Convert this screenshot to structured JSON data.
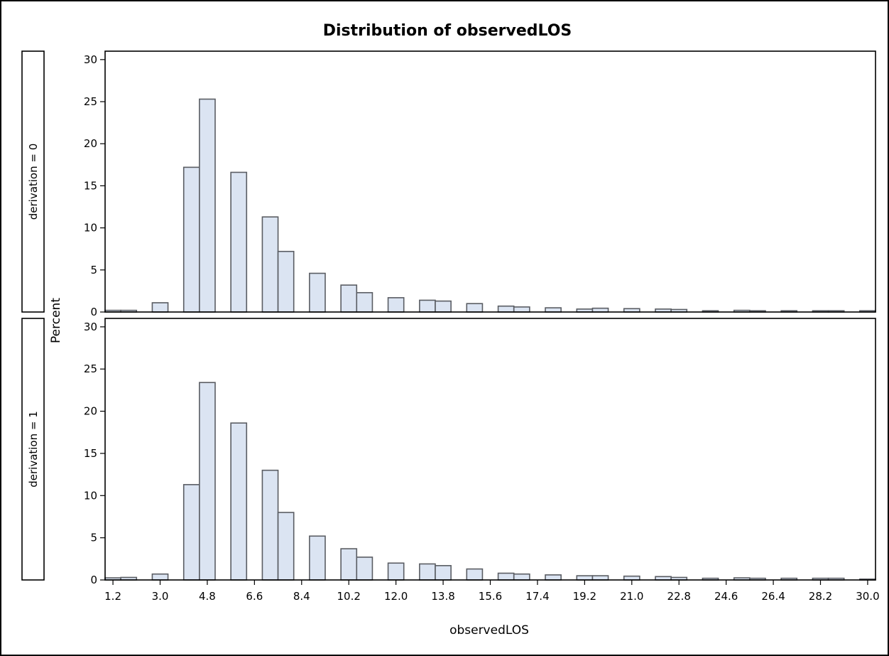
{
  "chart_data": {
    "type": "bar",
    "title": "Distribution of observedLOS",
    "xlabel": "observedLOS",
    "ylabel": "Percent",
    "x_ticks": [
      "1.2",
      "3.0",
      "4.8",
      "6.6",
      "8.4",
      "10.2",
      "12.0",
      "13.8",
      "15.6",
      "17.4",
      "19.2",
      "21.0",
      "22.8",
      "24.6",
      "26.4",
      "28.2",
      "30.0"
    ],
    "x_range": [
      0.9,
      30.3
    ],
    "ylim": [
      0,
      31
    ],
    "y_ticks": [
      0,
      5,
      10,
      15,
      20,
      25,
      30
    ],
    "bin_width": 0.6,
    "panels": [
      {
        "label": "derivation = 0",
        "bars": [
          {
            "x": 1.2,
            "y": 0.2
          },
          {
            "x": 1.8,
            "y": 0.2
          },
          {
            "x": 3.0,
            "y": 1.1
          },
          {
            "x": 4.2,
            "y": 17.2
          },
          {
            "x": 4.8,
            "y": 25.3
          },
          {
            "x": 6.0,
            "y": 16.6
          },
          {
            "x": 7.2,
            "y": 11.3
          },
          {
            "x": 7.8,
            "y": 7.2
          },
          {
            "x": 9.0,
            "y": 4.6
          },
          {
            "x": 10.2,
            "y": 3.2
          },
          {
            "x": 10.8,
            "y": 2.3
          },
          {
            "x": 12.0,
            "y": 1.7
          },
          {
            "x": 13.2,
            "y": 1.4
          },
          {
            "x": 13.8,
            "y": 1.3
          },
          {
            "x": 15.0,
            "y": 1.0
          },
          {
            "x": 16.2,
            "y": 0.7
          },
          {
            "x": 16.8,
            "y": 0.6
          },
          {
            "x": 18.0,
            "y": 0.5
          },
          {
            "x": 19.2,
            "y": 0.35
          },
          {
            "x": 19.8,
            "y": 0.45
          },
          {
            "x": 21.0,
            "y": 0.4
          },
          {
            "x": 22.2,
            "y": 0.35
          },
          {
            "x": 22.8,
            "y": 0.3
          },
          {
            "x": 24.0,
            "y": 0.15
          },
          {
            "x": 25.2,
            "y": 0.2
          },
          {
            "x": 25.8,
            "y": 0.15
          },
          {
            "x": 27.0,
            "y": 0.15
          },
          {
            "x": 28.2,
            "y": 0.15
          },
          {
            "x": 28.8,
            "y": 0.15
          },
          {
            "x": 30.0,
            "y": 0.15
          }
        ]
      },
      {
        "label": "derivation = 1",
        "bars": [
          {
            "x": 1.2,
            "y": 0.25
          },
          {
            "x": 1.8,
            "y": 0.3
          },
          {
            "x": 3.0,
            "y": 0.7
          },
          {
            "x": 4.2,
            "y": 11.3
          },
          {
            "x": 4.8,
            "y": 23.4
          },
          {
            "x": 6.0,
            "y": 18.6
          },
          {
            "x": 7.2,
            "y": 13.0
          },
          {
            "x": 7.8,
            "y": 8.0
          },
          {
            "x": 9.0,
            "y": 5.2
          },
          {
            "x": 10.2,
            "y": 3.7
          },
          {
            "x": 10.8,
            "y": 2.7
          },
          {
            "x": 12.0,
            "y": 2.0
          },
          {
            "x": 13.2,
            "y": 1.9
          },
          {
            "x": 13.8,
            "y": 1.7
          },
          {
            "x": 15.0,
            "y": 1.3
          },
          {
            "x": 16.2,
            "y": 0.8
          },
          {
            "x": 16.8,
            "y": 0.7
          },
          {
            "x": 18.0,
            "y": 0.6
          },
          {
            "x": 19.2,
            "y": 0.5
          },
          {
            "x": 19.8,
            "y": 0.5
          },
          {
            "x": 21.0,
            "y": 0.45
          },
          {
            "x": 22.2,
            "y": 0.4
          },
          {
            "x": 22.8,
            "y": 0.3
          },
          {
            "x": 24.0,
            "y": 0.2
          },
          {
            "x": 25.2,
            "y": 0.25
          },
          {
            "x": 25.8,
            "y": 0.2
          },
          {
            "x": 27.0,
            "y": 0.2
          },
          {
            "x": 28.2,
            "y": 0.2
          },
          {
            "x": 28.8,
            "y": 0.2
          },
          {
            "x": 30.0,
            "y": 0.1
          }
        ]
      }
    ]
  }
}
